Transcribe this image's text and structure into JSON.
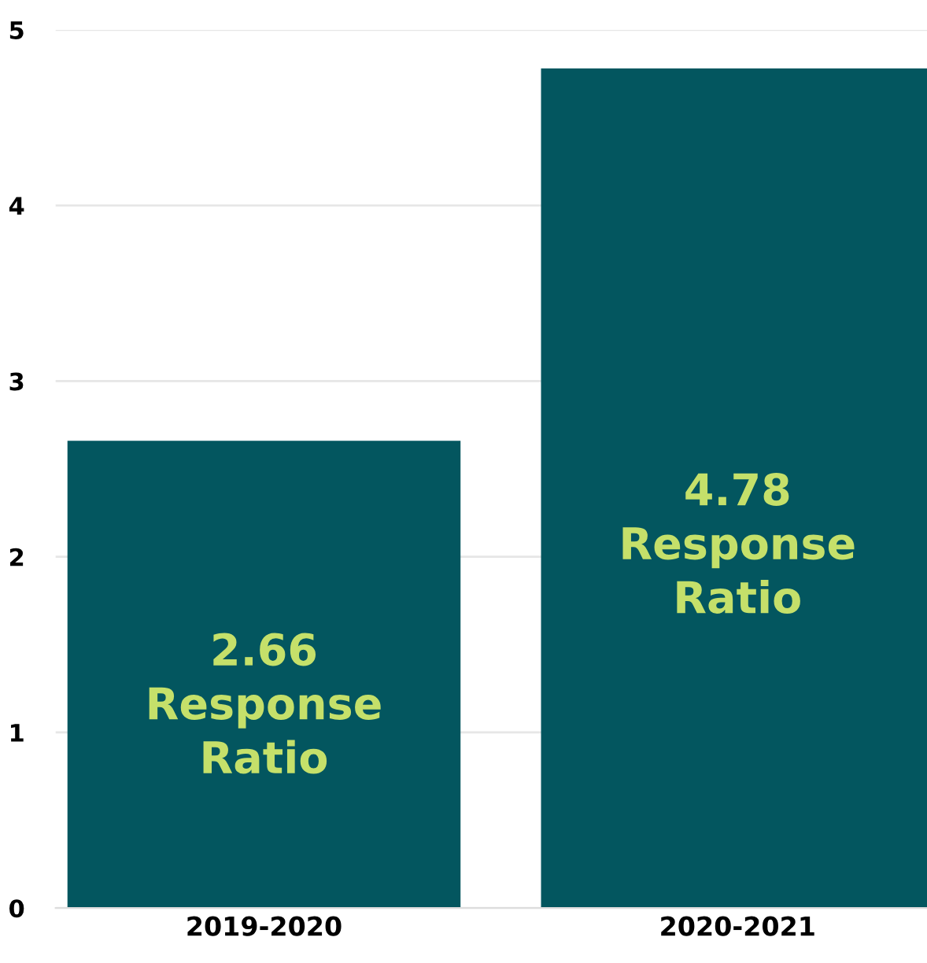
{
  "chart_data": {
    "type": "bar",
    "categories": [
      "2019-2020",
      "2020-2021"
    ],
    "values": [
      2.66,
      4.78
    ],
    "color": "#03565f",
    "value_labels": [
      "2.66\nResponse\nRatio",
      "4.78\nResponse\nRatio"
    ],
    "ylim": [
      0,
      5
    ],
    "yticks": [
      0,
      1,
      2,
      3,
      4,
      5
    ],
    "grid": "y"
  }
}
